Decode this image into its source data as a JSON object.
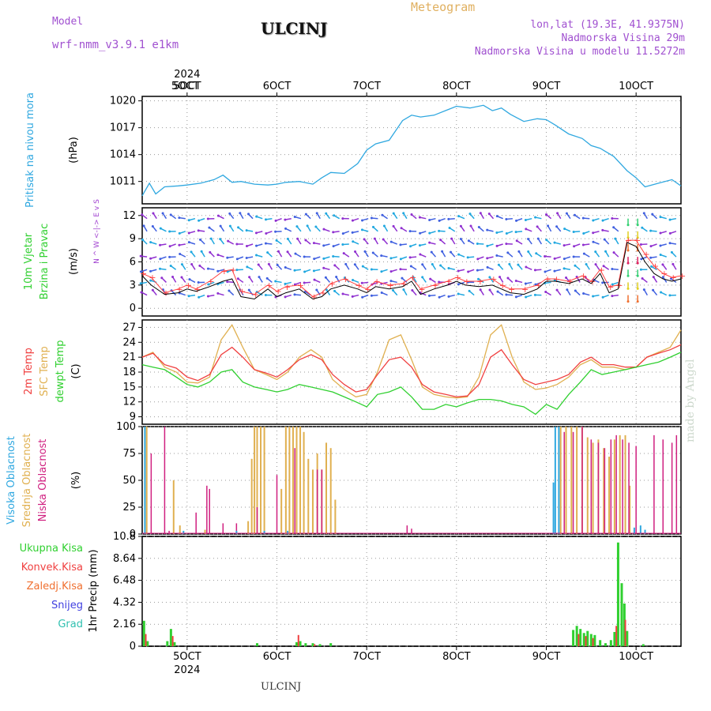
{
  "header": {
    "model_label": "Model",
    "model_name": "wrf-nmm_v3.9.1 e1km",
    "meteogram": "Meteogram",
    "station": "ULCINJ",
    "coords": "lon,lat (19.3E, 41.9375N)",
    "altitude": "Nadmorska Visina 29m",
    "model_altitude": "Nadmorska Visina u modelu 11.5272m",
    "bottom_station": "ULCINJ",
    "watermark": "made by Angel"
  },
  "colors": {
    "pressure": "#30a8e0",
    "wind_speed": "#000000",
    "gust": "#ff4040",
    "temp2m": "#f04040",
    "sfc": "#e0b050",
    "dew": "#30d030",
    "high": "#30a8e0",
    "mid": "#e0b050",
    "low": "#d02080",
    "total_precip": "#30d030",
    "conv_precip": "#f04040"
  },
  "chart_data": [
    {
      "type": "line",
      "name": "pressure",
      "ylabel_main": "Pritisak na nivou mora",
      "unit": "(hPa)",
      "top_year": "2024",
      "top_dates": [
        "5OCT",
        "6OCT",
        "7OCT",
        "8OCT",
        "9OCT",
        "10OCT"
      ],
      "xlim": [
        4.5,
        10.5
      ],
      "ylim": [
        1008.5,
        1020.5
      ],
      "yticks": [
        "1011",
        "1014",
        "1017",
        "1020"
      ],
      "x": [
        4.5,
        4.58,
        4.65,
        4.75,
        4.9,
        5.0,
        5.15,
        5.3,
        5.4,
        5.5,
        5.6,
        5.75,
        5.9,
        6.0,
        6.1,
        6.25,
        6.4,
        6.5,
        6.6,
        6.75,
        6.9,
        7.0,
        7.1,
        7.25,
        7.4,
        7.5,
        7.6,
        7.75,
        7.9,
        8.0,
        8.15,
        8.3,
        8.4,
        8.5,
        8.6,
        8.75,
        8.9,
        9.0,
        9.1,
        9.25,
        9.4,
        9.5,
        9.6,
        9.75,
        9.9,
        10.0,
        10.1,
        10.25,
        10.4,
        10.5
      ],
      "y": [
        1009.4,
        1010.8,
        1009.6,
        1010.4,
        1010.5,
        1010.6,
        1010.8,
        1011.2,
        1011.7,
        1010.9,
        1011.0,
        1010.7,
        1010.6,
        1010.7,
        1010.9,
        1011.0,
        1010.7,
        1011.4,
        1012.0,
        1011.9,
        1013.0,
        1014.5,
        1015.2,
        1015.6,
        1017.8,
        1018.4,
        1018.2,
        1018.4,
        1019.0,
        1019.4,
        1019.2,
        1019.5,
        1018.9,
        1019.2,
        1018.5,
        1017.7,
        1018.0,
        1017.9,
        1017.3,
        1016.3,
        1015.8,
        1015.0,
        1014.7,
        1013.8,
        1012.2,
        1011.4,
        1010.4,
        1010.8,
        1011.2,
        1010.5
      ]
    },
    {
      "type": "line",
      "name": "wind",
      "ylabel_main": "10m Vjetar",
      "ylabel_sub": "Brzina i Pravac",
      "unit": "(m/s)",
      "compass": "N ^ W <-|-> E v S",
      "ylim": [
        -1,
        13
      ],
      "yticks": [
        "0",
        "3",
        "6",
        "9",
        "12"
      ],
      "x": [
        4.5,
        4.6,
        4.75,
        4.9,
        5.0,
        5.1,
        5.25,
        5.4,
        5.5,
        5.6,
        5.75,
        5.9,
        6.0,
        6.1,
        6.25,
        6.4,
        6.5,
        6.6,
        6.75,
        6.9,
        7.0,
        7.1,
        7.25,
        7.4,
        7.5,
        7.6,
        7.75,
        7.9,
        8.0,
        8.1,
        8.25,
        8.4,
        8.5,
        8.6,
        8.75,
        8.9,
        9.0,
        9.1,
        9.25,
        9.4,
        9.5,
        9.6,
        9.7,
        9.8,
        9.9,
        10.0,
        10.1,
        10.2,
        10.3,
        10.4,
        10.5
      ],
      "speed": [
        4.2,
        3.0,
        1.8,
        2.0,
        2.5,
        2.2,
        2.8,
        3.5,
        3.8,
        1.5,
        1.2,
        2.5,
        1.5,
        2.0,
        2.5,
        1.2,
        1.5,
        2.5,
        3.0,
        2.5,
        2.0,
        2.8,
        2.5,
        2.8,
        3.5,
        1.8,
        2.5,
        3.0,
        3.5,
        3.0,
        2.8,
        3.0,
        2.5,
        2.0,
        1.8,
        2.5,
        3.5,
        3.5,
        3.2,
        3.8,
        3.2,
        4.5,
        2.0,
        2.5,
        8.5,
        8.0,
        6.0,
        4.5,
        3.8,
        3.5,
        3.8
      ],
      "gust": [
        4.5,
        4.0,
        2.0,
        2.5,
        3.0,
        2.5,
        3.5,
        4.8,
        5.0,
        2.2,
        1.8,
        3.0,
        2.2,
        2.8,
        3.0,
        1.5,
        2.0,
        3.2,
        3.8,
        3.0,
        2.5,
        3.5,
        3.0,
        3.2,
        4.0,
        2.5,
        3.0,
        3.5,
        4.0,
        3.5,
        3.5,
        3.8,
        3.0,
        2.5,
        2.5,
        3.0,
        3.8,
        3.8,
        3.5,
        4.2,
        3.5,
        5.0,
        2.8,
        3.0,
        8.8,
        8.8,
        7.0,
        5.5,
        4.5,
        4.0,
        4.2
      ]
    },
    {
      "type": "line",
      "name": "temperature",
      "ylabel": [
        "2m Temp",
        "SFC Temp",
        "dewpt Temp"
      ],
      "unit": "(C)",
      "ylim": [
        7.5,
        28.5
      ],
      "yticks": [
        "9",
        "12",
        "15",
        "18",
        "21",
        "24",
        "27"
      ],
      "x": [
        4.5,
        4.62,
        4.75,
        4.88,
        5.0,
        5.12,
        5.25,
        5.38,
        5.5,
        5.62,
        5.75,
        5.88,
        6.0,
        6.12,
        6.25,
        6.38,
        6.5,
        6.62,
        6.75,
        6.88,
        7.0,
        7.12,
        7.25,
        7.38,
        7.5,
        7.62,
        7.75,
        7.88,
        8.0,
        8.12,
        8.25,
        8.38,
        8.5,
        8.62,
        8.75,
        8.88,
        9.0,
        9.12,
        9.25,
        9.38,
        9.5,
        9.62,
        9.75,
        9.88,
        10.0,
        10.12,
        10.25,
        10.38,
        10.5
      ],
      "t2m": [
        21,
        21.8,
        19.5,
        18.8,
        17.0,
        16.3,
        17.5,
        21.5,
        23.0,
        21.0,
        18.5,
        17.8,
        17.0,
        18.5,
        20.5,
        21.5,
        20.5,
        17.5,
        15.5,
        14.0,
        14.5,
        17.5,
        20.5,
        21.0,
        19.0,
        15.5,
        14.0,
        13.5,
        13.0,
        13.2,
        15.5,
        21.0,
        22.5,
        19.5,
        16.5,
        15.5,
        16.0,
        16.5,
        17.5,
        20.0,
        21.0,
        19.5,
        19.5,
        19.0,
        19.0,
        21.0,
        21.8,
        22.5,
        23.5
      ],
      "sfc": [
        21,
        22.0,
        19.0,
        18.0,
        16.0,
        15.8,
        17.0,
        24.5,
        27.5,
        23.0,
        18.5,
        17.5,
        16.5,
        18.0,
        21.0,
        22.5,
        21.0,
        16.5,
        14.5,
        13.0,
        13.5,
        18.0,
        24.5,
        25.5,
        20.5,
        15.0,
        13.5,
        13.0,
        12.8,
        13.0,
        17.0,
        25.5,
        27.5,
        21.0,
        16.0,
        14.5,
        14.8,
        15.5,
        17.0,
        19.5,
        20.5,
        19.0,
        19.0,
        18.5,
        19.0,
        21.0,
        22.0,
        23.0,
        26.5
      ],
      "dew": [
        19.5,
        19.0,
        18.5,
        17.0,
        15.5,
        15.0,
        16.0,
        18.0,
        18.5,
        16.0,
        15.0,
        14.5,
        14.0,
        14.5,
        15.5,
        15.0,
        14.5,
        14.0,
        13.0,
        12.0,
        11.0,
        13.5,
        14.0,
        15.0,
        13.0,
        10.5,
        10.5,
        11.5,
        11.0,
        11.8,
        12.5,
        12.5,
        12.2,
        11.5,
        11.0,
        9.5,
        11.5,
        10.5,
        13.5,
        16.0,
        18.5,
        17.5,
        18.0,
        18.5,
        19.0,
        19.5,
        20.0,
        21.0,
        22.0
      ]
    },
    {
      "type": "bar",
      "name": "cloud",
      "ylabel": [
        "Visoka Oblacnost",
        "Srednja Oblacnost",
        "Niska Oblacnost"
      ],
      "unit": "(%)",
      "ylim": [
        0,
        100
      ],
      "yticks": [
        "0",
        "25",
        "50",
        "75",
        "100"
      ],
      "high": [
        [
          4.53,
          100
        ],
        [
          4.96,
          3
        ],
        [
          5.55,
          3
        ],
        [
          5.86,
          3
        ],
        [
          6.12,
          3
        ],
        [
          9.08,
          48
        ],
        [
          9.1,
          100
        ],
        [
          9.14,
          100
        ],
        [
          9.98,
          6
        ],
        [
          10.05,
          8
        ],
        [
          10.1,
          4
        ]
      ],
      "mid": [
        [
          4.55,
          100
        ],
        [
          4.85,
          50
        ],
        [
          4.92,
          8
        ],
        [
          5.2,
          4
        ],
        [
          5.68,
          12
        ],
        [
          5.72,
          70
        ],
        [
          5.75,
          100
        ],
        [
          5.78,
          100
        ],
        [
          5.82,
          100
        ],
        [
          5.86,
          100
        ],
        [
          6.05,
          42
        ],
        [
          6.1,
          100
        ],
        [
          6.14,
          100
        ],
        [
          6.18,
          100
        ],
        [
          6.22,
          100
        ],
        [
          6.26,
          100
        ],
        [
          6.3,
          95
        ],
        [
          6.35,
          70
        ],
        [
          6.4,
          60
        ],
        [
          6.45,
          75
        ],
        [
          6.5,
          60
        ],
        [
          6.55,
          85
        ],
        [
          6.6,
          80
        ],
        [
          6.65,
          32
        ],
        [
          9.16,
          100
        ],
        [
          9.22,
          100
        ],
        [
          9.28,
          100
        ],
        [
          9.34,
          100
        ],
        [
          9.4,
          100
        ],
        [
          9.46,
          90
        ],
        [
          9.52,
          85
        ],
        [
          9.58,
          88
        ],
        [
          9.64,
          80
        ],
        [
          9.7,
          72
        ],
        [
          9.76,
          88
        ],
        [
          9.82,
          92
        ],
        [
          9.88,
          92
        ],
        [
          9.93,
          45
        ]
      ],
      "low": [
        [
          4.6,
          75
        ],
        [
          4.75,
          100
        ],
        [
          4.8,
          3
        ],
        [
          5.1,
          20
        ],
        [
          5.22,
          45
        ],
        [
          5.25,
          42
        ],
        [
          5.4,
          10
        ],
        [
          5.55,
          10
        ],
        [
          5.78,
          25
        ],
        [
          6.0,
          55
        ],
        [
          6.2,
          80
        ],
        [
          6.45,
          60
        ],
        [
          6.5,
          60
        ],
        [
          7.45,
          8
        ],
        [
          7.5,
          5
        ],
        [
          9.2,
          95
        ],
        [
          9.3,
          95
        ],
        [
          9.4,
          100
        ],
        [
          9.5,
          88
        ],
        [
          9.58,
          85
        ],
        [
          9.65,
          80
        ],
        [
          9.72,
          88
        ],
        [
          9.78,
          92
        ],
        [
          9.85,
          88
        ],
        [
          9.92,
          85
        ],
        [
          10.0,
          82
        ],
        [
          10.05,
          2
        ],
        [
          10.2,
          92
        ],
        [
          10.3,
          88
        ],
        [
          10.4,
          85
        ],
        [
          10.45,
          92
        ]
      ]
    },
    {
      "type": "bar",
      "name": "precip",
      "ylabel": [
        "Ukupna Kisa",
        "Konvek.Kisa",
        "Zaledj.Kisa",
        "Snijeg",
        "Grad"
      ],
      "unit": "1hr Precip (mm)",
      "bottom_dates": [
        "5OCT",
        "6OCT",
        "7OCT",
        "8OCT",
        "9OCT",
        "10OCT"
      ],
      "bottom_year": "2024",
      "ylim": [
        0,
        10.8
      ],
      "yticks": [
        "0",
        "2.16",
        "4.32",
        "6.48",
        "8.64",
        "10.8"
      ],
      "total": [
        [
          4.52,
          2.5
        ],
        [
          4.56,
          0.5
        ],
        [
          4.78,
          0.5
        ],
        [
          4.82,
          1.7
        ],
        [
          4.86,
          0.4
        ],
        [
          5.78,
          0.3
        ],
        [
          6.22,
          0.4
        ],
        [
          6.26,
          0.5
        ],
        [
          6.32,
          0.3
        ],
        [
          6.4,
          0.3
        ],
        [
          6.48,
          0.2
        ],
        [
          6.6,
          0.3
        ],
        [
          9.3,
          1.6
        ],
        [
          9.34,
          2.0
        ],
        [
          9.38,
          1.7
        ],
        [
          9.42,
          1.3
        ],
        [
          9.46,
          1.5
        ],
        [
          9.5,
          1.2
        ],
        [
          9.54,
          1.1
        ],
        [
          9.6,
          0.6
        ],
        [
          9.66,
          0.3
        ],
        [
          9.72,
          0.6
        ],
        [
          9.76,
          1.4
        ],
        [
          9.8,
          10.2
        ],
        [
          9.84,
          6.2
        ],
        [
          9.87,
          4.2
        ],
        [
          9.9,
          1.5
        ],
        [
          10.08,
          0.2
        ]
      ],
      "conv": [
        [
          4.54,
          1.2
        ],
        [
          4.84,
          1.0
        ],
        [
          6.24,
          1.1
        ],
        [
          6.42,
          0.2
        ],
        [
          9.36,
          1.2
        ],
        [
          9.44,
          1.0
        ],
        [
          9.52,
          0.8
        ],
        [
          9.78,
          2.0
        ],
        [
          9.88,
          2.6
        ]
      ]
    }
  ]
}
